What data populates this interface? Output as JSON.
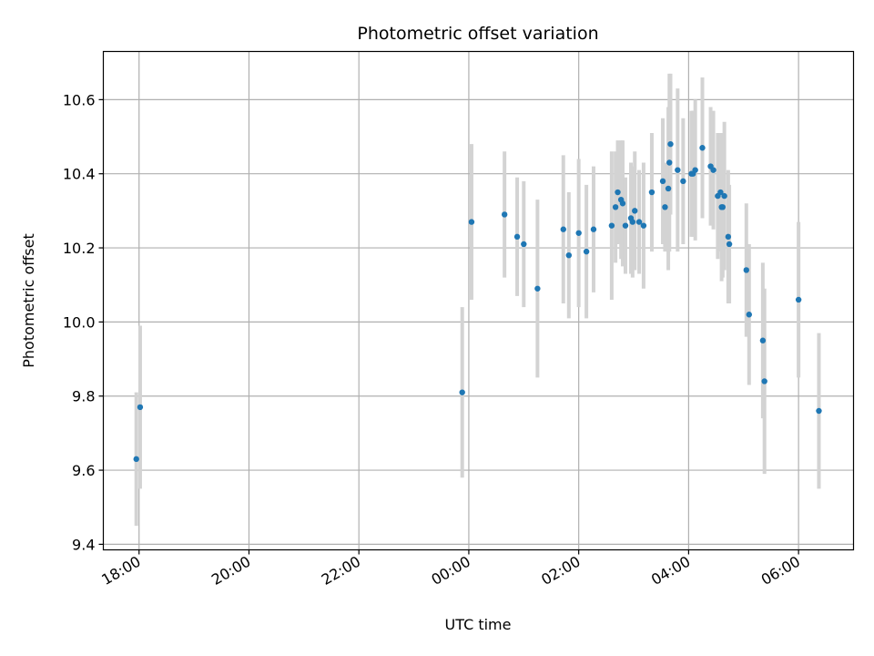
{
  "chart_data": {
    "type": "scatter",
    "title": "Photometric offset variation",
    "xlabel": "UTC time",
    "ylabel": "Photometric offset",
    "x_tick_labels": [
      "18:00",
      "20:00",
      "22:00",
      "00:00",
      "02:00",
      "04:00",
      "06:00"
    ],
    "x_tick_hours": [
      0,
      2,
      4,
      6,
      8,
      10,
      12
    ],
    "y_tick_labels": [
      "9.4",
      "9.6",
      "9.8",
      "10.0",
      "10.2",
      "10.4",
      "10.6"
    ],
    "y_tick_values": [
      9.4,
      9.6,
      9.8,
      10.0,
      10.2,
      10.4,
      10.6
    ],
    "xlim_hours_after_1800": [
      -0.65,
      13.0
    ],
    "ylim": [
      9.385,
      10.73
    ],
    "grid": true,
    "point_color": "#1f77b4",
    "errorbar_color": "#d3d3d3",
    "series": [
      {
        "x_hours_after_1800": [
          -0.05,
          0.02,
          5.88,
          6.05,
          6.65,
          6.88,
          7.0,
          7.25,
          7.72,
          7.82,
          8.0,
          8.14,
          8.27,
          8.6,
          8.67,
          8.71,
          8.77,
          8.8,
          8.85,
          8.95,
          8.98,
          9.02,
          9.1,
          9.18,
          9.33,
          9.53,
          9.57,
          9.63,
          9.65,
          9.67,
          9.8,
          9.9,
          10.05,
          10.08,
          10.12,
          10.25,
          10.4,
          10.45,
          10.53,
          10.58,
          10.6,
          10.62,
          10.65,
          10.72,
          10.74,
          11.05,
          11.1,
          11.35,
          11.38,
          12.0,
          12.37
        ],
        "y": [
          9.63,
          9.77,
          9.81,
          10.27,
          10.29,
          10.23,
          10.21,
          10.09,
          10.25,
          10.18,
          10.24,
          10.19,
          10.25,
          10.26,
          10.31,
          10.35,
          10.33,
          10.32,
          10.26,
          10.28,
          10.27,
          10.3,
          10.27,
          10.26,
          10.35,
          10.38,
          10.31,
          10.36,
          10.43,
          10.48,
          10.41,
          10.38,
          10.4,
          10.4,
          10.41,
          10.47,
          10.42,
          10.41,
          10.34,
          10.35,
          10.31,
          10.31,
          10.34,
          10.23,
          10.21,
          10.14,
          10.02,
          9.95,
          9.84,
          10.06,
          9.76
        ],
        "yerr": [
          0.18,
          0.22,
          0.23,
          0.21,
          0.17,
          0.16,
          0.17,
          0.24,
          0.2,
          0.17,
          0.2,
          0.18,
          0.17,
          0.2,
          0.15,
          0.14,
          0.16,
          0.17,
          0.13,
          0.15,
          0.15,
          0.16,
          0.14,
          0.17,
          0.16,
          0.17,
          0.12,
          0.22,
          0.24,
          0.19,
          0.22,
          0.17,
          0.17,
          0.17,
          0.19,
          0.19,
          0.16,
          0.16,
          0.17,
          0.16,
          0.2,
          0.19,
          0.2,
          0.18,
          0.16,
          0.18,
          0.19,
          0.21,
          0.25,
          0.21,
          0.21
        ]
      }
    ]
  }
}
